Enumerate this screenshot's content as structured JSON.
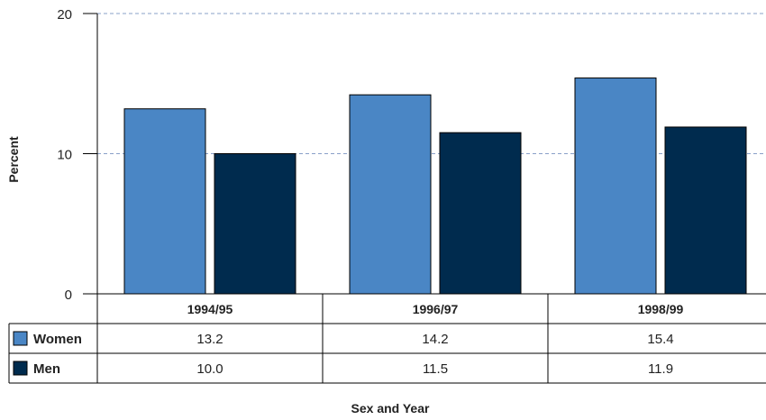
{
  "chart_data": {
    "type": "bar",
    "categories": [
      "1994/95",
      "1996/97",
      "1998/99"
    ],
    "series": [
      {
        "name": "Women",
        "values": [
          13.2,
          14.2,
          15.4
        ],
        "labels": [
          "13.2",
          "14.2",
          "15.4"
        ],
        "color": "#4a86c5"
      },
      {
        "name": "Men",
        "values": [
          10.0,
          11.5,
          11.9
        ],
        "labels": [
          "10.0",
          "11.5",
          "11.9"
        ],
        "color": "#002b4e"
      }
    ],
    "ylabel": "Percent",
    "xlabel": "Sex and Year",
    "ylim": [
      0,
      20
    ],
    "yticks": [
      0,
      10,
      20
    ],
    "gridlines": [
      10,
      20
    ],
    "grid_color": "#8aa0c8"
  }
}
